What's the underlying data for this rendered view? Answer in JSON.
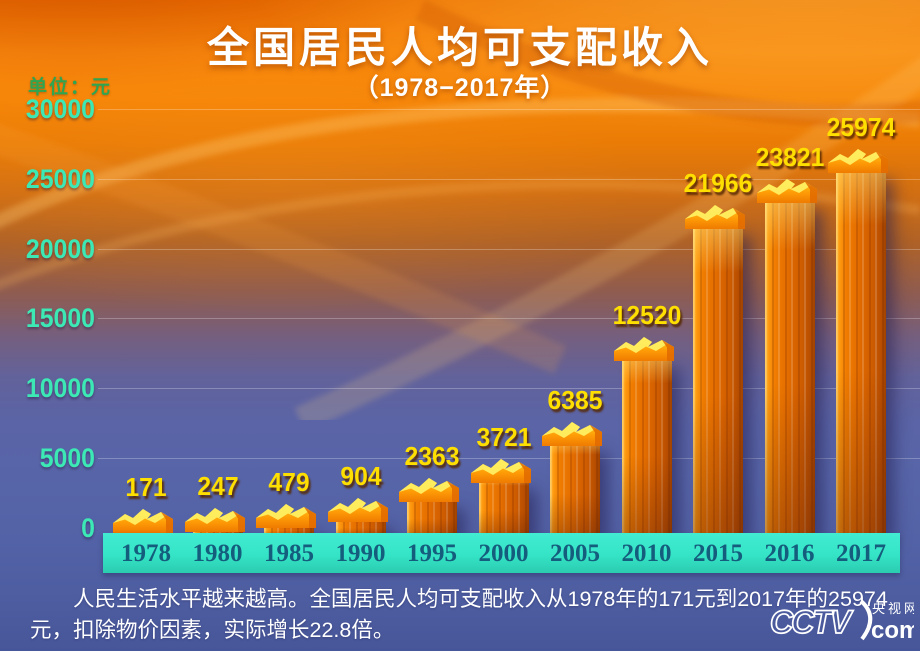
{
  "title": "全国居民人均可支配收入",
  "subtitle": "（1978−2017年）",
  "unit_label": "单位：元",
  "chart_data": {
    "type": "bar",
    "title": "全国居民人均可支配收入（1978−2017年）",
    "ylabel": "单位：元",
    "categories": [
      "1978",
      "1980",
      "1985",
      "1990",
      "1995",
      "2000",
      "2005",
      "2010",
      "2015",
      "2016",
      "2017"
    ],
    "values": [
      171,
      247,
      479,
      904,
      2363,
      3721,
      6385,
      12520,
      21966,
      23821,
      25974
    ],
    "ylim": [
      0,
      30000
    ],
    "yticks": [
      0,
      5000,
      10000,
      15000,
      20000,
      25000,
      30000
    ],
    "grid": true,
    "legend": "none",
    "bar_color": "#f07c00",
    "bar_cap_color": "#ffe14a",
    "value_label_color": "#ffdf00",
    "tick_label_color": "#3ce9b5",
    "axis_band_color": "#35e4c6",
    "year_label_color": "#155d7d"
  },
  "caption": "人民生活水平越来越高。全国居民人均可支配收入从1978年的171元到2017年的25974元，扣除物价因素，实际增长22.8倍。",
  "logo": {
    "brand": "CCTV",
    "site": "央视网",
    "domain": "com"
  },
  "colors": {
    "title": "#ffffff",
    "unit_label": "#2fa552",
    "background_top": "#f8870c",
    "background_bottom": "#475699"
  }
}
